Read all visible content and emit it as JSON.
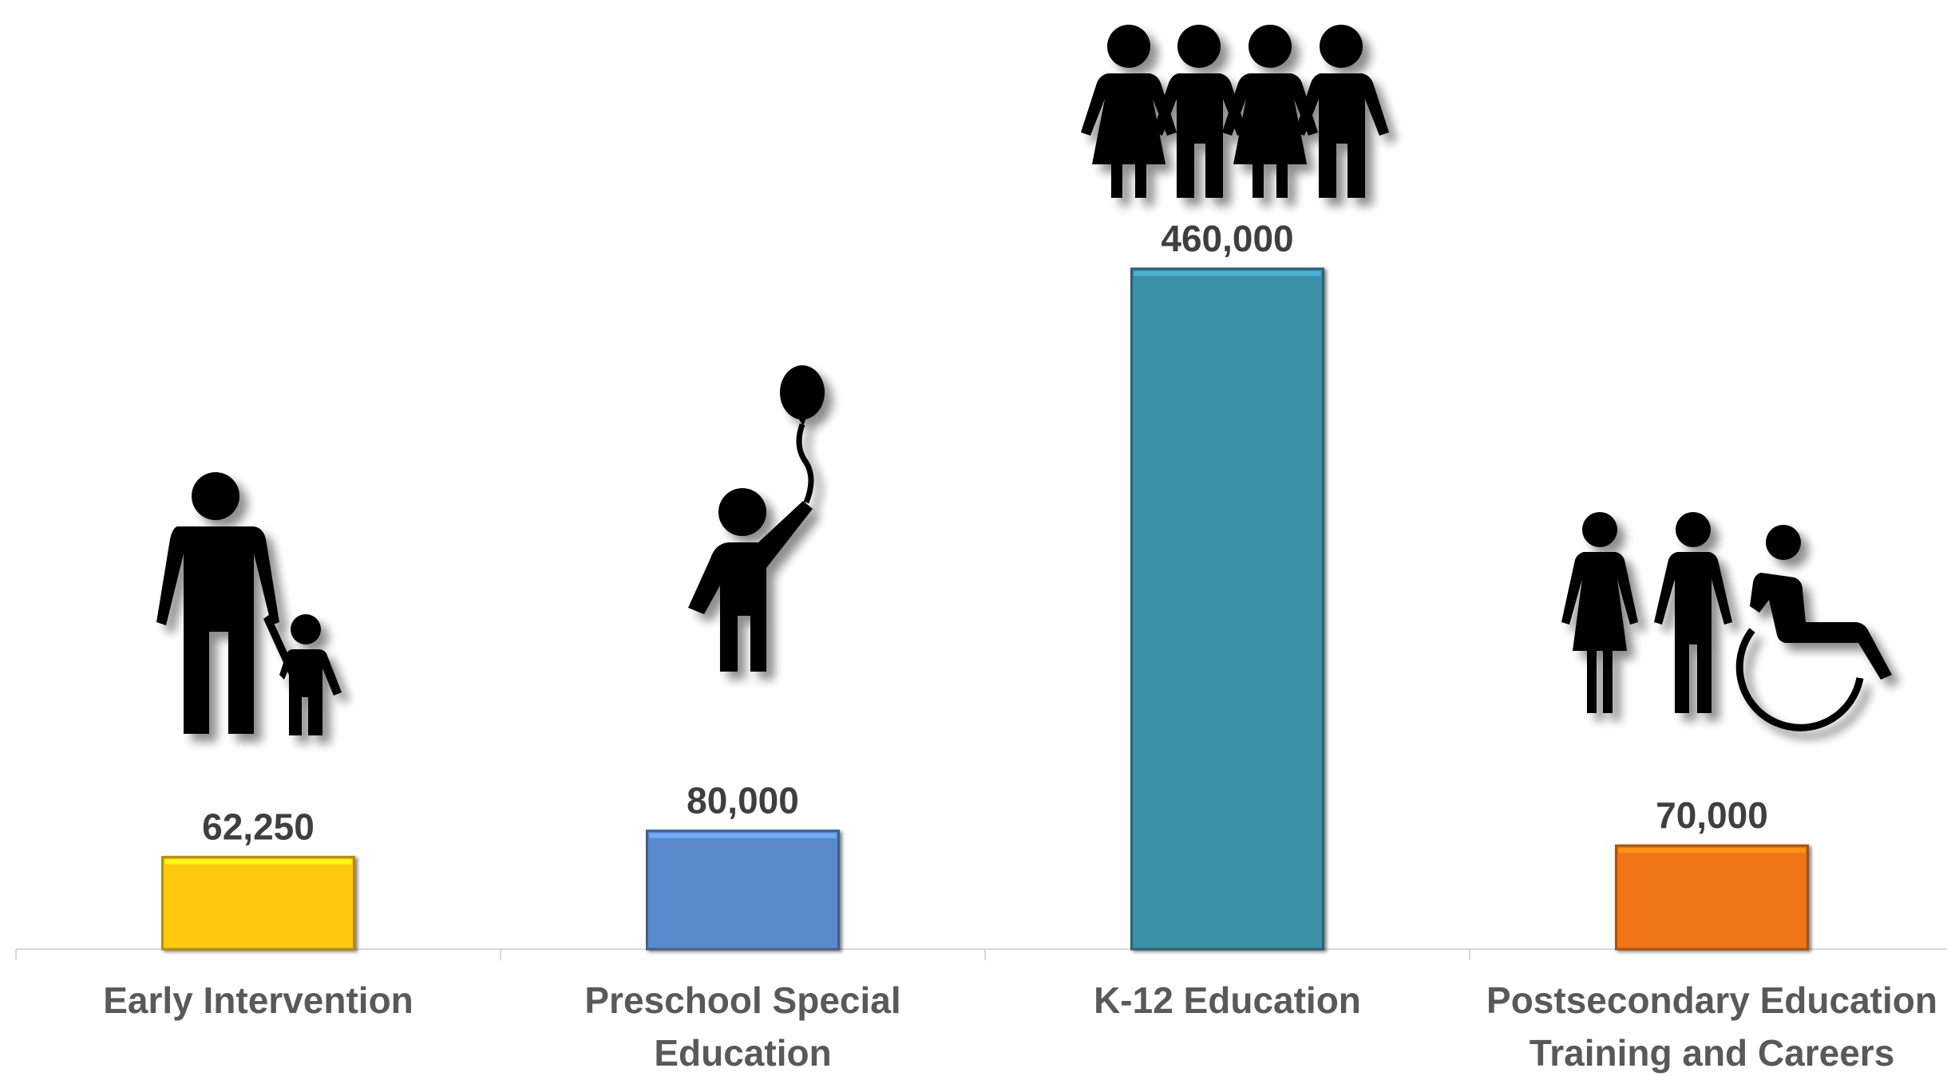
{
  "chart_data": {
    "type": "bar",
    "categories": [
      [
        "Early Intervention"
      ],
      [
        "Preschool Special",
        "Education"
      ],
      [
        "K-12 Education"
      ],
      [
        "Postsecondary Education",
        "Training and Careers"
      ]
    ],
    "values": [
      62250,
      80000,
      460000,
      70000
    ],
    "value_labels": [
      "62,250",
      "80,000",
      "460,000",
      "70,000"
    ],
    "colors": [
      "#FFC90E",
      "#5A8ACB",
      "#3A8FA7",
      "#EF7513"
    ],
    "icons": [
      "parent-with-child-icon",
      "child-with-balloon-icon",
      "group-of-students-icon",
      "adults-and-wheelchair-user-icon"
    ],
    "ylim": [
      0,
      460000
    ],
    "grid": false,
    "legend": "none",
    "title": "",
    "xlabel": "",
    "ylabel": ""
  }
}
